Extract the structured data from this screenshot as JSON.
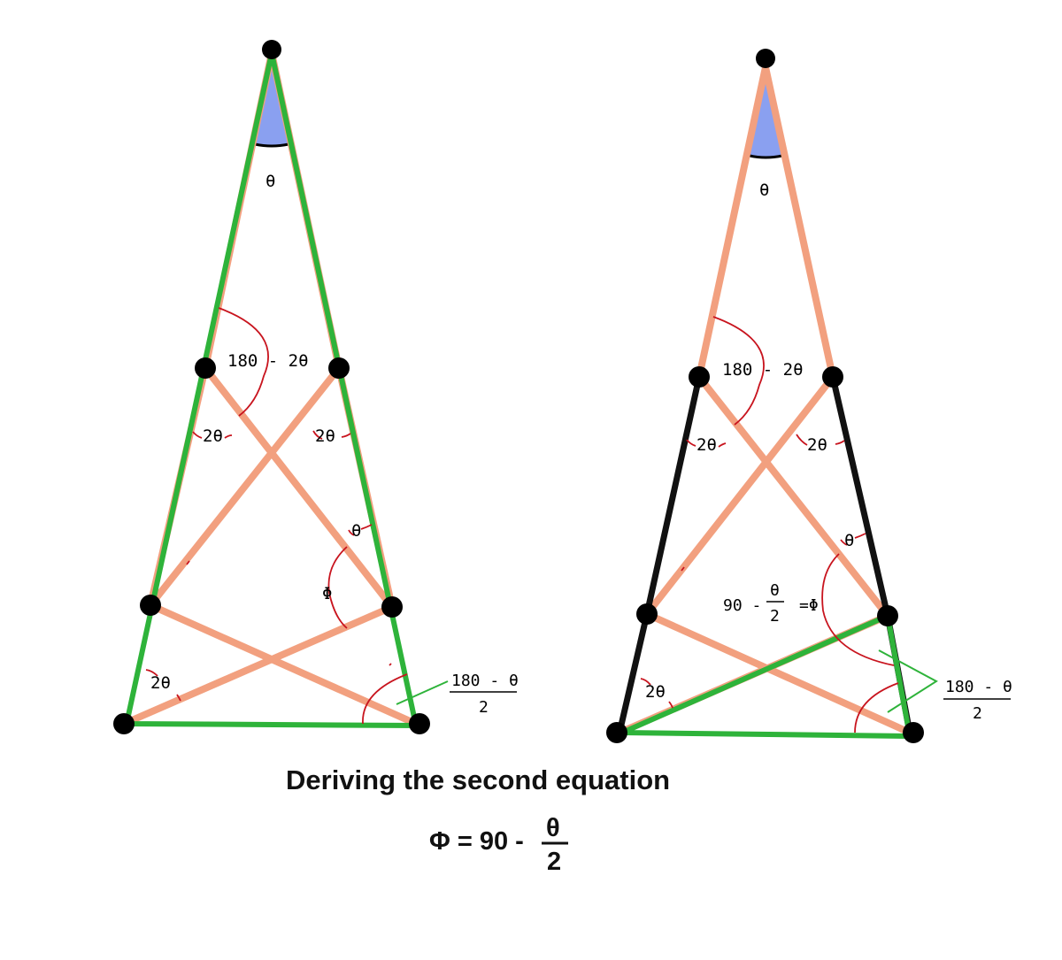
{
  "labels": {
    "theta": "θ",
    "two_theta": "2θ",
    "angle_180_minus_2theta": "180 - 2θ",
    "phi": "Φ",
    "frac_num": "180 - θ",
    "frac_den": "2",
    "right_phi_prefix": "90 -",
    "right_phi_num": "θ",
    "right_phi_den": "2",
    "right_phi_suffix": "=Φ"
  },
  "caption": "Deriving the second equation",
  "equation": {
    "lhs": "Φ = 90 -",
    "num": "θ",
    "den": "2"
  },
  "colors": {
    "stick": "#f2a07f",
    "highlight_green": "#2eb33a",
    "highlight_black": "#111111",
    "angle_arc": "#c8141e",
    "apex_wedge": "#8aa0f0",
    "node": "#000000"
  }
}
